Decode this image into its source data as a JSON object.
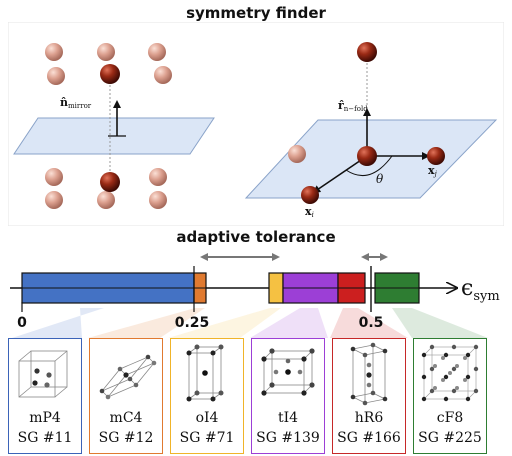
{
  "titles": {
    "top": "symmetry finder",
    "middle": "adaptive tolerance"
  },
  "labels": {
    "n_mirror_main": "n̂",
    "n_mirror_sub": "mirror",
    "r_nfold_main": "r̂",
    "r_nfold_sub": "n−fold",
    "theta": "θ",
    "x_j_main": "x",
    "x_j_sub": "j",
    "x_i_main": "x",
    "x_i_sub": "i",
    "epsilon_main": "ϵ",
    "epsilon_sub": "sym"
  },
  "bar": {
    "ticks": [
      "0",
      "0.25",
      "0.5"
    ],
    "segments": [
      {
        "name": "mP4",
        "color": "#4472c4"
      },
      {
        "name": "mC4",
        "color": "#e07a30"
      },
      {
        "name": "oI4",
        "color": "#f5c142"
      },
      {
        "name": "tI4",
        "color": "#9c3fd6"
      },
      {
        "name": "hR6",
        "color": "#cc1f1f"
      },
      {
        "name": "cF8",
        "color": "#2e7d32"
      }
    ]
  },
  "cards": [
    {
      "name": "mP4",
      "sg": "SG #11",
      "border": "#3b63b8"
    },
    {
      "name": "mC4",
      "sg": "SG #12",
      "border": "#e07a30"
    },
    {
      "name": "oI4",
      "sg": "SG #71",
      "border": "#f0b429"
    },
    {
      "name": "tI4",
      "sg": "SG #139",
      "border": "#9c3fd6"
    },
    {
      "name": "hR6",
      "sg": "SG #166",
      "border": "#c62828"
    },
    {
      "name": "cF8",
      "sg": "SG #225",
      "border": "#2e7d32"
    }
  ],
  "colors": {
    "atom_dark": "#8b2010",
    "atom_light": "#d89a88",
    "plane": "#dbe6f6"
  }
}
